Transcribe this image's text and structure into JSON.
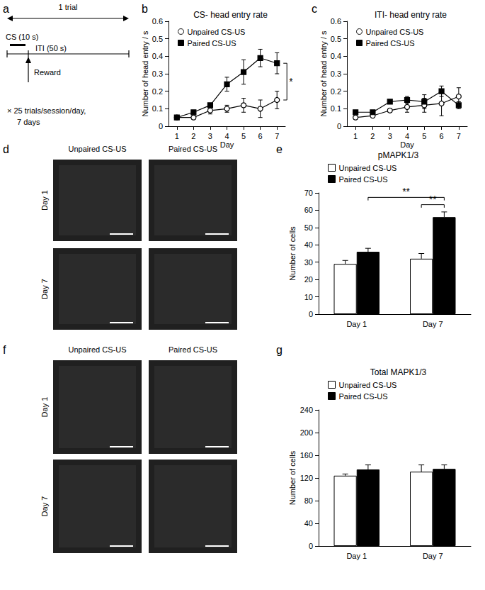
{
  "chart_data": [
    {
      "panel": "b",
      "type": "line",
      "title": "CS- head entry rate",
      "xlabel": "Day",
      "ylabel": "Number of head entry / s",
      "categories": [
        "1",
        "2",
        "3",
        "4",
        "5",
        "6",
        "7"
      ],
      "ylim": [
        0,
        0.6
      ],
      "yticks": [
        0,
        0.1,
        0.2,
        0.3,
        0.4,
        0.5,
        0.6
      ],
      "grid": false,
      "legend": "upper left",
      "series": [
        {
          "name": "Unpaired CS-US",
          "color": "#ffffff",
          "marker": "circle",
          "values": [
            0.05,
            0.05,
            0.09,
            0.1,
            0.12,
            0.1,
            0.15
          ],
          "errors": [
            0.01,
            0.01,
            0.02,
            0.02,
            0.04,
            0.05,
            0.05
          ]
        },
        {
          "name": "Paired CS-US",
          "color": "#000000",
          "marker": "rect",
          "values": [
            0.05,
            0.08,
            0.12,
            0.24,
            0.31,
            0.39,
            0.36
          ],
          "errors": [
            0.01,
            0.01,
            0.01,
            0.04,
            0.07,
            0.05,
            0.06
          ]
        }
      ],
      "annotations": [
        {
          "text": "*",
          "between": [
            "Unpaired CS-US",
            "Paired CS-US"
          ],
          "at": "7"
        }
      ]
    },
    {
      "panel": "c",
      "type": "line",
      "title": "ITI- head entry rate",
      "xlabel": "Day",
      "ylabel": "Number of head entry / s",
      "categories": [
        "1",
        "2",
        "3",
        "4",
        "5",
        "6",
        "7"
      ],
      "ylim": [
        0,
        0.6
      ],
      "yticks": [
        0,
        0.1,
        0.2,
        0.3,
        0.4,
        0.5,
        0.6
      ],
      "grid": false,
      "legend": "upper left",
      "series": [
        {
          "name": "Unpaired CS-US",
          "color": "#ffffff",
          "marker": "circle",
          "values": [
            0.05,
            0.06,
            0.09,
            0.11,
            0.12,
            0.13,
            0.17
          ],
          "errors": [
            0.01,
            0.01,
            0.01,
            0.03,
            0.04,
            0.07,
            0.05
          ]
        },
        {
          "name": "Paired CS-US",
          "color": "#000000",
          "marker": "rect",
          "values": [
            0.08,
            0.08,
            0.14,
            0.15,
            0.14,
            0.2,
            0.12
          ],
          "errors": [
            0.01,
            0.01,
            0.01,
            0.02,
            0.04,
            0.03,
            0.02
          ]
        }
      ]
    },
    {
      "panel": "e",
      "type": "bar",
      "title": "pMAPK1/3",
      "ylabel": "Number of cells",
      "categories": [
        "Day 1",
        "Day 7"
      ],
      "ylim": [
        0,
        70
      ],
      "yticks": [
        0,
        10,
        20,
        30,
        40,
        50,
        60,
        70
      ],
      "grid": false,
      "legend": "upper left",
      "series": [
        {
          "name": "Unpaired CS-US",
          "color": "#ffffff",
          "values": [
            29,
            32
          ],
          "errors": [
            2,
            3
          ]
        },
        {
          "name": "Paired CS-US",
          "color": "#000000",
          "values": [
            36,
            56
          ],
          "errors": [
            2,
            3
          ]
        }
      ],
      "annotations": [
        {
          "text": "**",
          "between": [
            {
              "series": "Paired CS-US",
              "category": "Day 1"
            },
            {
              "series": "Paired CS-US",
              "category": "Day 7"
            }
          ]
        },
        {
          "text": "**",
          "between": [
            {
              "series": "Unpaired CS-US",
              "category": "Day 7"
            },
            {
              "series": "Paired CS-US",
              "category": "Day 7"
            }
          ]
        }
      ]
    },
    {
      "panel": "g",
      "type": "bar",
      "title": "Total MAPK1/3",
      "ylabel": "Number of cells",
      "categories": [
        "Day 1",
        "Day 7"
      ],
      "ylim": [
        0,
        240
      ],
      "yticks": [
        0,
        40,
        80,
        120,
        160,
        200,
        240
      ],
      "grid": false,
      "legend": "upper left",
      "series": [
        {
          "name": "Unpaired CS-US",
          "color": "#ffffff",
          "values": [
            124,
            131
          ],
          "errors": [
            3,
            12
          ]
        },
        {
          "name": "Paired CS-US",
          "color": "#000000",
          "values": [
            135,
            136
          ],
          "errors": [
            8,
            7
          ]
        }
      ]
    }
  ],
  "diagram": {
    "panel": "a",
    "span_label": "1 trial",
    "stimulus_label": "CS (10 s)",
    "interval_label": "ITI (50 s)",
    "event_label": "Reward",
    "notes": [
      "× 25 trials/session/day,",
      "7 days"
    ]
  },
  "image_panels": [
    {
      "panel": "d",
      "columns": [
        "Unpaired CS-US",
        "Paired CS-US"
      ],
      "rows": [
        "Day 1",
        "Day 7"
      ]
    },
    {
      "panel": "f",
      "columns": [
        "Unpaired CS-US",
        "Paired CS-US"
      ],
      "rows": [
        "Day 1",
        "Day 7"
      ]
    }
  ]
}
